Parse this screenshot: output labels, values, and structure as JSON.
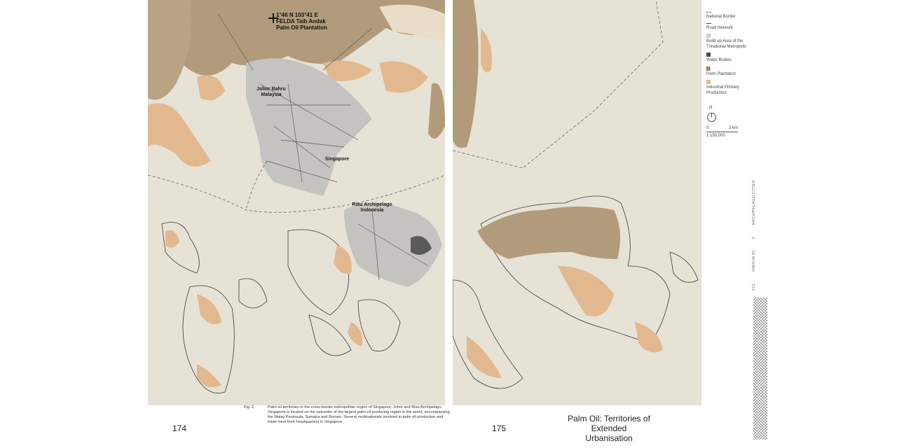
{
  "colors": {
    "map_background": "#e6e2d6",
    "palm_plantation": "#b29b7a",
    "industrial_primary_production": "#e2b98f",
    "build_up_area": "#c5c3c0",
    "water_bodies": "#4a4a4a",
    "road_network": "#666666"
  },
  "map_left": {
    "coordinate": "1°46 N 103°41 E",
    "marker_label_1": "FELDA Taib Andak",
    "marker_label_2": "Palm Oil Plantation",
    "place_johor_1": "Johor Bahru",
    "place_johor_2": "Malaysia",
    "place_singapore": "Singapore",
    "place_riau_1": "Riau Archipelago",
    "place_riau_2": "Indonesia"
  },
  "legend": {
    "items": [
      {
        "label": "National Border",
        "icon": "dashed-line-icon"
      },
      {
        "label": "Road Network",
        "icon": "road-line-icon"
      },
      {
        "label": "Build up Area of the Trinational Metropolis",
        "icon": "gray-swatch"
      },
      {
        "label": "Water Bodies",
        "icon": "dark-swatch"
      },
      {
        "label": "Palm Plantation",
        "icon": "dotted-brown-swatch"
      },
      {
        "label": "Industrial Primary Production",
        "icon": "orange-swatch"
      }
    ],
    "north": "N",
    "scale_start": "0",
    "scale_end": "2 km",
    "scale_ratio": "1:150.000"
  },
  "footer": {
    "page_left": "174",
    "page_right": "175",
    "fig_label": "Fig. 2",
    "caption_1": "Palm oil territories in the cross-border metropolitan region of Singapore, Johor and Riau Archipelago.",
    "caption_2": "Singapore is located on the epicenter of the largest palm oil producing region in the world, encompassing the Malay Peninsula, Sumatra and Borneo. Several multinationals involved in palm oil production and trade have their headquarters in Singapore.",
    "title_line_1": "Palm Oil: Territories of Extended",
    "title_line_2": "Urbanisation"
  },
  "running_head": [
    "FCL",
    "INDICIA 01",
    "C",
    "ARCHIPELAGO CITIES"
  ]
}
